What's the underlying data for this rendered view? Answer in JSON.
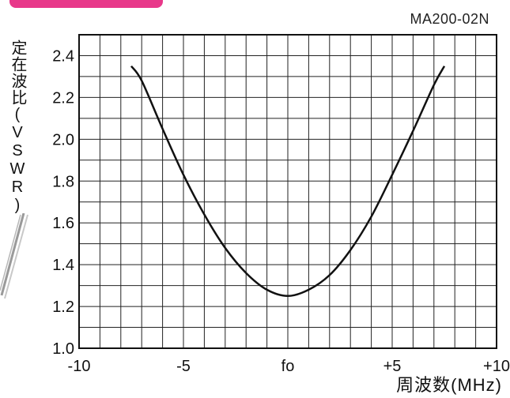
{
  "model_label": "MA200-02N",
  "chart_data": {
    "type": "line",
    "xlabel": "周波数(MHz)",
    "ylabel": "定在波比(VSWR)",
    "xlim": [
      -10,
      10
    ],
    "ylim": [
      1.0,
      2.5
    ],
    "grid": true,
    "x_ticks": [
      {
        "value": -10,
        "label": "-10"
      },
      {
        "value": -5,
        "label": "-5"
      },
      {
        "value": 0,
        "label": "fo"
      },
      {
        "value": 5,
        "label": "+5"
      },
      {
        "value": 10,
        "label": "+10"
      }
    ],
    "y_ticks": [
      {
        "value": 1.0,
        "label": "1.0"
      },
      {
        "value": 1.2,
        "label": "1.2"
      },
      {
        "value": 1.4,
        "label": "1.4"
      },
      {
        "value": 1.6,
        "label": "1.6"
      },
      {
        "value": 1.8,
        "label": "1.8"
      },
      {
        "value": 2.0,
        "label": "2.0"
      },
      {
        "value": 2.2,
        "label": "2.2"
      },
      {
        "value": 2.4,
        "label": "2.4"
      }
    ],
    "series": [
      {
        "x": [
          -7.5,
          -7,
          -6,
          -5,
          -4,
          -3,
          -2,
          -1,
          0,
          1,
          2,
          3,
          4,
          5,
          6,
          7,
          7.5
        ],
        "y": [
          2.35,
          2.28,
          2.05,
          1.83,
          1.64,
          1.48,
          1.36,
          1.28,
          1.25,
          1.28,
          1.35,
          1.47,
          1.63,
          1.83,
          2.04,
          2.26,
          2.35
        ]
      }
    ],
    "line_color": "#111111"
  }
}
